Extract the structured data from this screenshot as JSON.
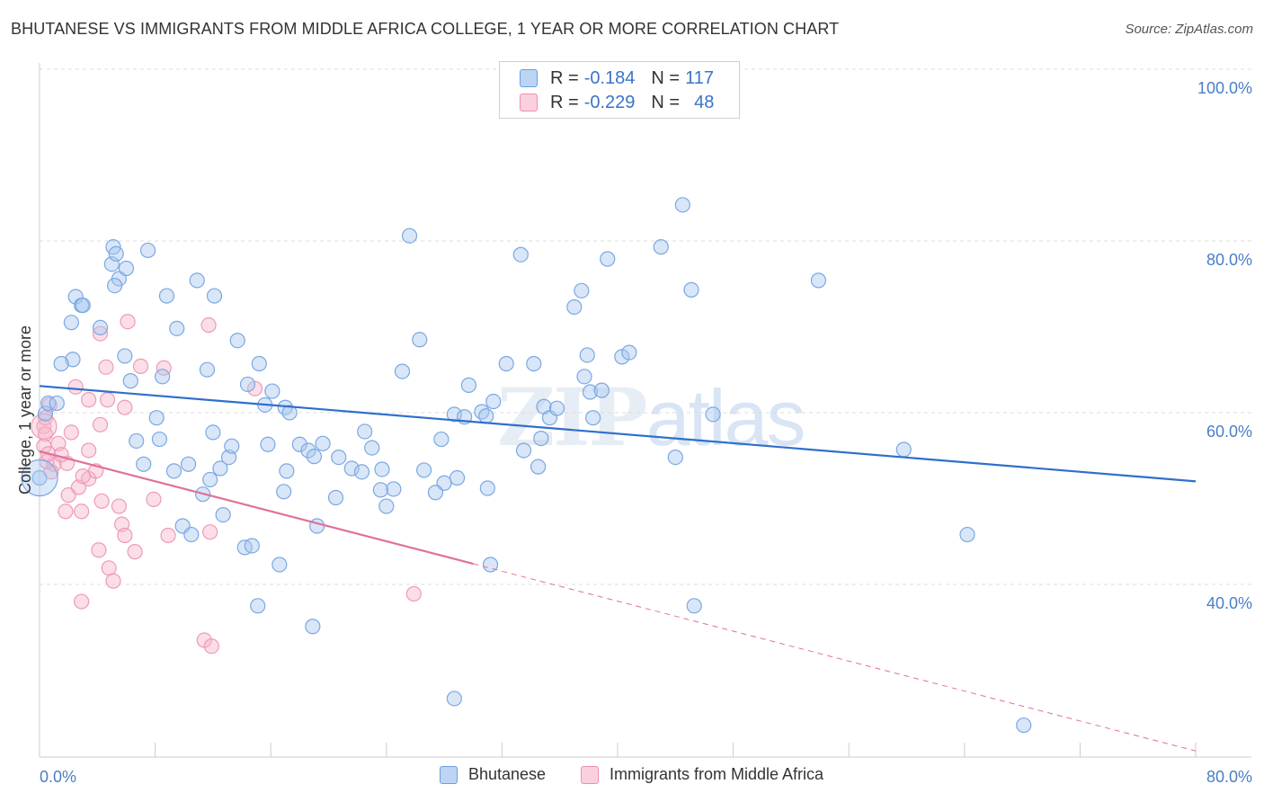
{
  "header": {
    "title": "BHUTANESE VS IMMIGRANTS FROM MIDDLE AFRICA COLLEGE, 1 YEAR OR MORE CORRELATION CHART",
    "source": "Source: ZipAtlas.com"
  },
  "watermark": {
    "zip": "ZIP",
    "atlas": "atlas"
  },
  "legend": {
    "rows": [
      {
        "r_label": "R =",
        "r_value": "-0.184",
        "n_label": "N =",
        "n_value": "117",
        "color": "#a8c8f0"
      },
      {
        "r_label": "R =",
        "r_value": "-0.229",
        "n_label": "N =",
        "n_value": "48",
        "color": "#f6b6ca"
      }
    ]
  },
  "bottom_legend": {
    "series1": "Bhutanese",
    "series2": "Immigrants from Middle Africa"
  },
  "chart_data": {
    "type": "scatter",
    "title": "BHUTANESE VS IMMIGRANTS FROM MIDDLE AFRICA COLLEGE, 1 YEAR OR MORE CORRELATION CHART",
    "xlabel": "",
    "ylabel": "College, 1 year or more",
    "xlim": [
      0,
      80
    ],
    "ylim": [
      20,
      102
    ],
    "x_tick_labels": [
      "0.0%",
      "80.0%"
    ],
    "y_tick_labels": [
      "100.0%",
      "80.0%",
      "60.0%",
      "40.0%"
    ],
    "y_ticks": [
      100,
      80,
      60,
      40
    ],
    "grid": true,
    "legend_position": "top-center",
    "colors": {
      "blue": "#6b9fe0",
      "blue_fill": "#a8c8f0",
      "pink": "#ee8eb0",
      "pink_fill": "#f6b6ca",
      "blue_line": "#2f6fcc",
      "pink_line": "#e0709a"
    },
    "series": [
      {
        "name": "Bhutanese",
        "trend": {
          "x": [
            0,
            80
          ],
          "y": [
            65.2,
            54.1
          ]
        },
        "points": [
          [
            5.1,
            81.4
          ],
          [
            5.0,
            79.4
          ],
          [
            5.3,
            80.6
          ],
          [
            7.5,
            81.0
          ],
          [
            5.5,
            77.7
          ],
          [
            5.2,
            76.9
          ],
          [
            2.5,
            75.6
          ],
          [
            2.9,
            74.6
          ],
          [
            3.0,
            74.6
          ],
          [
            2.2,
            72.6
          ],
          [
            4.2,
            72.0
          ],
          [
            6.0,
            78.9
          ],
          [
            8.8,
            75.7
          ],
          [
            9.5,
            71.9
          ],
          [
            10.9,
            77.5
          ],
          [
            12.1,
            75.7
          ],
          [
            2.3,
            68.3
          ],
          [
            1.5,
            67.8
          ],
          [
            5.9,
            68.7
          ],
          [
            6.3,
            65.8
          ],
          [
            8.5,
            66.3
          ],
          [
            11.6,
            67.1
          ],
          [
            13.7,
            70.5
          ],
          [
            14.4,
            65.4
          ],
          [
            15.2,
            67.8
          ],
          [
            16.1,
            64.6
          ],
          [
            15.6,
            63.0
          ],
          [
            17.0,
            62.7
          ],
          [
            17.3,
            62.1
          ],
          [
            12.0,
            59.8
          ],
          [
            8.1,
            61.5
          ],
          [
            8.3,
            59.0
          ],
          [
            6.7,
            58.8
          ],
          [
            7.2,
            56.1
          ],
          [
            9.3,
            55.3
          ],
          [
            10.3,
            56.1
          ],
          [
            11.8,
            54.3
          ],
          [
            12.5,
            55.6
          ],
          [
            13.1,
            56.9
          ],
          [
            13.3,
            58.2
          ],
          [
            15.8,
            58.4
          ],
          [
            18.0,
            58.4
          ],
          [
            17.1,
            55.3
          ],
          [
            18.6,
            57.7
          ],
          [
            19.0,
            57.0
          ],
          [
            19.6,
            58.5
          ],
          [
            20.7,
            56.9
          ],
          [
            21.6,
            55.6
          ],
          [
            22.3,
            55.2
          ],
          [
            22.5,
            59.9
          ],
          [
            23.0,
            58.0
          ],
          [
            23.7,
            55.5
          ],
          [
            20.5,
            52.2
          ],
          [
            24.0,
            51.2
          ],
          [
            24.5,
            53.2
          ],
          [
            16.9,
            52.9
          ],
          [
            12.7,
            50.2
          ],
          [
            9.9,
            48.9
          ],
          [
            10.5,
            47.9
          ],
          [
            14.2,
            46.4
          ],
          [
            14.7,
            46.6
          ],
          [
            16.6,
            44.4
          ],
          [
            19.2,
            48.9
          ],
          [
            15.1,
            39.6
          ],
          [
            18.9,
            37.2
          ],
          [
            25.1,
            66.9
          ],
          [
            26.3,
            70.6
          ],
          [
            28.7,
            61.9
          ],
          [
            27.8,
            59.0
          ],
          [
            28.0,
            53.9
          ],
          [
            28.9,
            54.5
          ],
          [
            29.4,
            61.6
          ],
          [
            29.7,
            65.3
          ],
          [
            30.6,
            62.2
          ],
          [
            30.9,
            61.7
          ],
          [
            31.4,
            63.4
          ],
          [
            32.3,
            67.8
          ],
          [
            34.2,
            67.8
          ],
          [
            34.9,
            62.8
          ],
          [
            34.7,
            59.1
          ],
          [
            33.5,
            57.7
          ],
          [
            31.0,
            53.3
          ],
          [
            34.5,
            55.8
          ],
          [
            35.3,
            61.5
          ],
          [
            35.8,
            62.6
          ],
          [
            37.0,
            74.4
          ],
          [
            37.5,
            76.3
          ],
          [
            37.7,
            66.3
          ],
          [
            37.9,
            68.8
          ],
          [
            38.1,
            64.5
          ],
          [
            38.3,
            61.5
          ],
          [
            38.9,
            64.7
          ],
          [
            40.3,
            68.6
          ],
          [
            39.3,
            80.0
          ],
          [
            40.8,
            69.1
          ],
          [
            33.3,
            80.5
          ],
          [
            25.6,
            82.7
          ],
          [
            43.0,
            81.4
          ],
          [
            44.5,
            86.3
          ],
          [
            45.1,
            76.4
          ],
          [
            46.6,
            61.9
          ],
          [
            44.0,
            56.9
          ],
          [
            53.9,
            77.5
          ],
          [
            59.8,
            57.8
          ],
          [
            64.2,
            47.9
          ],
          [
            31.2,
            44.4
          ],
          [
            45.3,
            39.6
          ],
          [
            28.7,
            28.8
          ],
          [
            68.1,
            25.7
          ],
          [
            0.0,
            54.5
          ],
          [
            0.4,
            62.0
          ],
          [
            0.6,
            63.2
          ],
          [
            1.2,
            63.2
          ],
          [
            23.6,
            53.1
          ],
          [
            27.4,
            52.8
          ],
          [
            11.3,
            52.6
          ],
          [
            26.6,
            55.4
          ]
        ]
      },
      {
        "name": "Immigrants from Middle Africa",
        "trend": {
          "x": [
            0,
            30
          ],
          "y": [
            57.6,
            44.5
          ]
        },
        "trend_dashed": {
          "x": [
            30,
            80
          ],
          "y": [
            44.5,
            22.7
          ]
        },
        "points": [
          [
            0.3,
            60.5
          ],
          [
            0.4,
            59.6
          ],
          [
            0.3,
            58.2
          ],
          [
            1.0,
            56.1
          ],
          [
            0.8,
            55.2
          ],
          [
            0.5,
            56.4
          ],
          [
            1.3,
            58.5
          ],
          [
            0.6,
            57.3
          ],
          [
            2.2,
            59.8
          ],
          [
            1.9,
            56.2
          ],
          [
            2.0,
            52.5
          ],
          [
            1.8,
            50.6
          ],
          [
            2.7,
            53.4
          ],
          [
            3.4,
            54.4
          ],
          [
            3.9,
            55.3
          ],
          [
            3.0,
            54.7
          ],
          [
            4.2,
            60.7
          ],
          [
            2.5,
            65.1
          ],
          [
            3.4,
            63.6
          ],
          [
            4.6,
            67.4
          ],
          [
            4.2,
            71.3
          ],
          [
            4.7,
            63.6
          ],
          [
            5.9,
            62.7
          ],
          [
            6.1,
            72.7
          ],
          [
            7.0,
            67.5
          ],
          [
            8.6,
            67.3
          ],
          [
            11.7,
            72.3
          ],
          [
            14.9,
            64.9
          ],
          [
            7.9,
            52.0
          ],
          [
            5.5,
            51.2
          ],
          [
            5.7,
            49.1
          ],
          [
            4.1,
            46.1
          ],
          [
            4.8,
            44.0
          ],
          [
            5.9,
            47.8
          ],
          [
            6.6,
            45.9
          ],
          [
            5.1,
            42.5
          ],
          [
            2.9,
            40.1
          ],
          [
            8.9,
            47.8
          ],
          [
            11.8,
            48.2
          ],
          [
            11.4,
            35.6
          ],
          [
            11.9,
            34.9
          ],
          [
            25.9,
            41.0
          ],
          [
            1.5,
            57.2
          ],
          [
            0.4,
            61.5
          ],
          [
            0.7,
            63.0
          ],
          [
            2.9,
            50.6
          ],
          [
            4.3,
            51.8
          ],
          [
            3.4,
            57.7
          ]
        ]
      }
    ]
  }
}
